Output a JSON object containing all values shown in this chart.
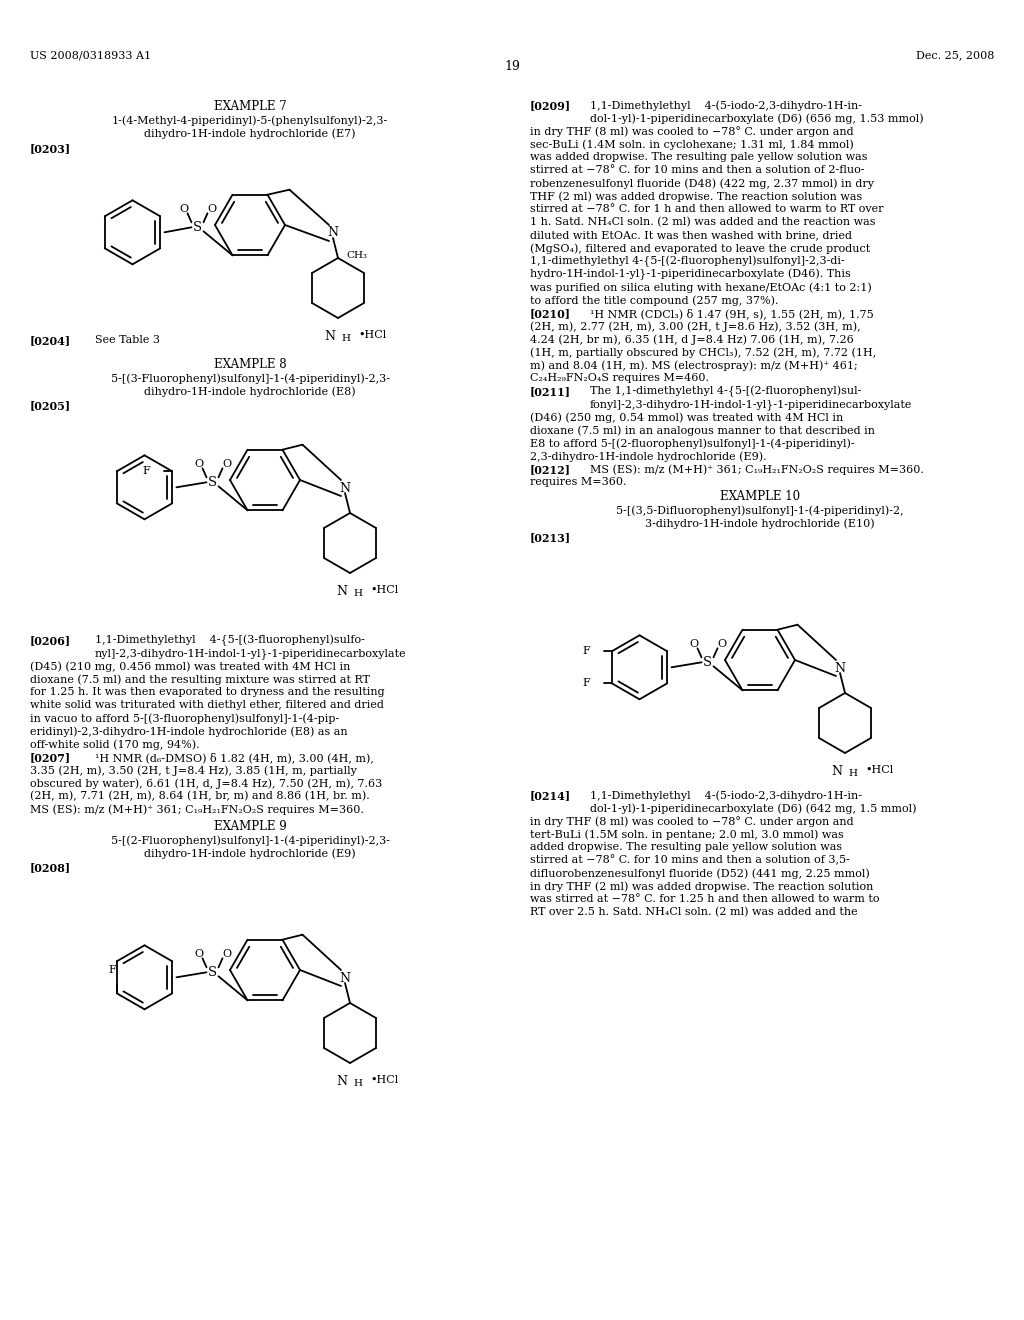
{
  "background_color": "#ffffff",
  "page_width": 10.24,
  "page_height": 13.2,
  "header_left": "US 2008/0318933 A1",
  "header_right": "Dec. 25, 2008",
  "page_number": "19"
}
